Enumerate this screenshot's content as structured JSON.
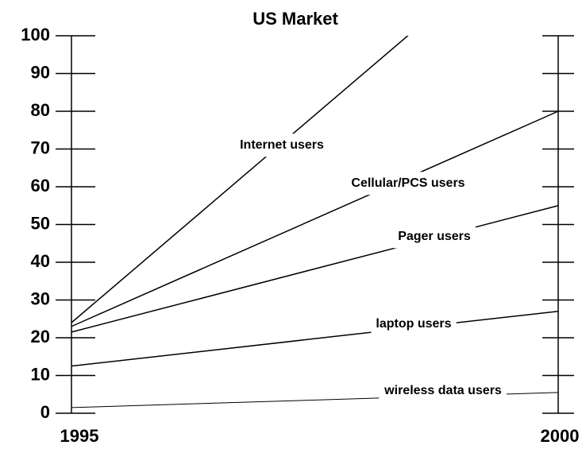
{
  "chart_data": {
    "type": "line",
    "title": "US Market",
    "x": [
      1995,
      2000
    ],
    "xlim": [
      1995,
      2000
    ],
    "xticks": [
      1995,
      2000
    ],
    "ylim": [
      0,
      100
    ],
    "yticks": [
      0,
      10,
      20,
      30,
      40,
      50,
      60,
      70,
      80,
      90,
      100
    ],
    "series": [
      {
        "name": "Internet users",
        "color": "#000000",
        "values": [
          24,
          134
        ]
      },
      {
        "name": "Cellular/PCS users",
        "color": "#000000",
        "values": [
          23,
          80
        ]
      },
      {
        "name": "Pager users",
        "color": "#000000",
        "values": [
          21.5,
          55
        ]
      },
      {
        "name": "laptop users",
        "color": "#000000",
        "values": [
          12.5,
          27
        ]
      },
      {
        "name": "wireless data users",
        "color": "#000000",
        "values": [
          1.5,
          5.5
        ]
      }
    ]
  }
}
